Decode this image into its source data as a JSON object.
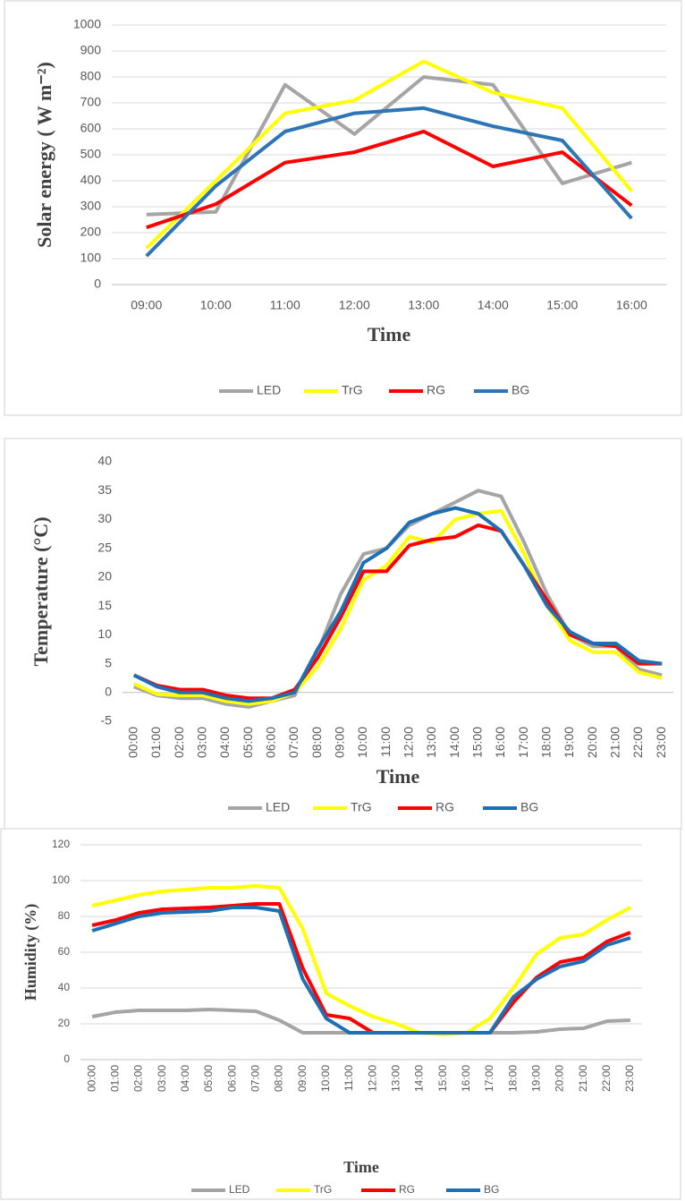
{
  "chart_data": [
    {
      "type": "line",
      "y_label": "Solar energy ( W m⁻²)",
      "x_label": "Time",
      "categories": [
        "09:00",
        "10:00",
        "11:00",
        "12:00",
        "13:00",
        "14:00",
        "15:00",
        "16:00"
      ],
      "ylim": [
        0,
        1000
      ],
      "yticks": [
        0,
        100,
        200,
        300,
        400,
        500,
        600,
        700,
        800,
        900,
        1000
      ],
      "grid": true,
      "series": [
        {
          "name": "LED",
          "color": "#a5a5a5",
          "values": [
            270,
            280,
            770,
            580,
            800,
            770,
            390,
            470
          ]
        },
        {
          "name": "TrG",
          "color": "#ffff00",
          "values": [
            140,
            400,
            660,
            710,
            860,
            740,
            680,
            360
          ]
        },
        {
          "name": "RG",
          "color": "#ff0000",
          "values": [
            220,
            310,
            470,
            510,
            590,
            455,
            510,
            305
          ]
        },
        {
          "name": "BG",
          "color": "#2e75b6",
          "values": [
            110,
            380,
            590,
            660,
            680,
            610,
            555,
            255
          ]
        }
      ]
    },
    {
      "type": "line",
      "y_label": "Temperature (°C)",
      "x_label": "Time",
      "categories": [
        "00:00",
        "01:00",
        "02:00",
        "03:00",
        "04:00",
        "05:00",
        "06:00",
        "07:00",
        "08:00",
        "09:00",
        "10:00",
        "11:00",
        "12:00",
        "13:00",
        "14:00",
        "15:00",
        "16:00",
        "17:00",
        "18:00",
        "19:00",
        "20:00",
        "21:00",
        "22:00",
        "23:00"
      ],
      "ylim": [
        -5,
        40
      ],
      "yticks": [
        -5,
        0,
        5,
        10,
        15,
        20,
        25,
        30,
        35,
        40
      ],
      "grid": false,
      "series": [
        {
          "name": "LED",
          "color": "#a5a5a5",
          "values": [
            1,
            -0.5,
            -1,
            -1,
            -2,
            -2.5,
            -1.5,
            -0.5,
            7,
            17,
            24,
            25,
            29,
            31,
            33,
            35,
            34,
            26,
            17,
            10,
            8,
            8,
            4,
            3
          ]
        },
        {
          "name": "TrG",
          "color": "#ffff00",
          "values": [
            1.5,
            -0.3,
            -0.5,
            -0.5,
            -1.5,
            -2,
            -1.5,
            0,
            4.5,
            11,
            19.5,
            22,
            27,
            26,
            30,
            31,
            31.5,
            24,
            15,
            9,
            7,
            7,
            3.5,
            2.5
          ]
        },
        {
          "name": "RG",
          "color": "#ff0000",
          "values": [
            3,
            1.2,
            0.5,
            0.5,
            -0.5,
            -1,
            -1,
            0.5,
            6,
            13,
            21,
            21,
            25.5,
            26.5,
            27,
            29,
            28,
            22,
            16,
            10,
            8.5,
            8,
            5,
            5
          ]
        },
        {
          "name": "BG",
          "color": "#1f6fb4",
          "values": [
            3,
            1,
            0,
            0,
            -1,
            -1.5,
            -1,
            0,
            7.5,
            14,
            22.5,
            25,
            29.5,
            31,
            32,
            31,
            28,
            22,
            15,
            10.5,
            8.5,
            8.5,
            5.5,
            5
          ]
        }
      ]
    },
    {
      "type": "line",
      "y_label": "Humidity (%)",
      "x_label": "Time",
      "categories": [
        "00:00",
        "01:00",
        "02:00",
        "03:00",
        "04:00",
        "05:00",
        "06:00",
        "07:00",
        "08:00",
        "09:00",
        "10:00",
        "11:00",
        "12:00",
        "13:00",
        "14:00",
        "15:00",
        "16:00",
        "17:00",
        "18:00",
        "19:00",
        "20:00",
        "21:00",
        "22:00",
        "23:00"
      ],
      "ylim": [
        0,
        120
      ],
      "yticks": [
        0,
        20,
        40,
        60,
        80,
        100,
        120
      ],
      "grid": true,
      "series": [
        {
          "name": "LED",
          "color": "#a5a5a5",
          "values": [
            24,
            26.5,
            27.5,
            27.5,
            27.5,
            28,
            27.5,
            27,
            22,
            15,
            15,
            15,
            15,
            15,
            15,
            15,
            15,
            15,
            15,
            15.5,
            17,
            17.5,
            21.5,
            22
          ]
        },
        {
          "name": "TrG",
          "color": "#ffff00",
          "values": [
            86,
            89,
            92,
            94,
            95,
            96,
            96,
            97,
            96,
            73,
            37,
            30,
            24,
            20,
            15,
            14,
            15,
            23,
            40,
            59,
            68,
            70,
            78,
            85
          ]
        },
        {
          "name": "RG",
          "color": "#ff0000",
          "values": [
            75,
            78,
            82,
            84,
            84.5,
            85,
            86,
            87,
            87,
            51,
            25,
            23,
            15,
            15,
            15,
            15,
            15,
            15,
            32,
            46,
            54.5,
            57,
            66,
            71
          ]
        },
        {
          "name": "BG",
          "color": "#1f6fb4",
          "values": [
            72,
            76,
            80,
            82,
            82.5,
            83,
            85,
            85,
            83,
            45,
            23,
            15,
            15,
            15,
            15,
            15,
            15,
            15,
            35,
            45,
            52,
            55,
            64,
            68
          ]
        }
      ]
    }
  ]
}
